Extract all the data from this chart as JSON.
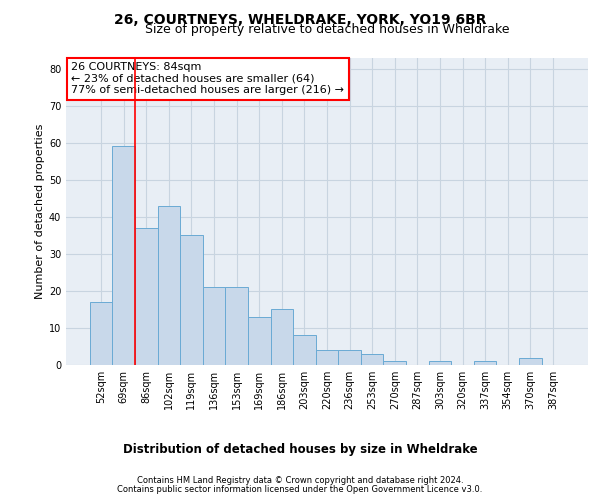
{
  "title": "26, COURTNEYS, WHELDRAKE, YORK, YO19 6BR",
  "subtitle": "Size of property relative to detached houses in Wheldrake",
  "xlabel_bottom": "Distribution of detached houses by size in Wheldrake",
  "ylabel": "Number of detached properties",
  "footer_line1": "Contains HM Land Registry data © Crown copyright and database right 2024.",
  "footer_line2": "Contains public sector information licensed under the Open Government Licence v3.0.",
  "categories": [
    "52sqm",
    "69sqm",
    "86sqm",
    "102sqm",
    "119sqm",
    "136sqm",
    "153sqm",
    "169sqm",
    "186sqm",
    "203sqm",
    "220sqm",
    "236sqm",
    "253sqm",
    "270sqm",
    "287sqm",
    "303sqm",
    "320sqm",
    "337sqm",
    "354sqm",
    "370sqm",
    "387sqm"
  ],
  "values": [
    17,
    59,
    37,
    43,
    35,
    21,
    21,
    13,
    15,
    8,
    4,
    4,
    3,
    1,
    0,
    1,
    0,
    1,
    0,
    2,
    0
  ],
  "bar_color": "#c8d8ea",
  "bar_edge_color": "#6aaad4",
  "bar_edge_width": 0.7,
  "red_line_index": 2,
  "annotation_text": "26 COURTNEYS: 84sqm\n← 23% of detached houses are smaller (64)\n77% of semi-detached houses are larger (216) →",
  "annotation_box_color": "white",
  "annotation_box_edge_color": "red",
  "ylim": [
    0,
    83
  ],
  "yticks": [
    0,
    10,
    20,
    30,
    40,
    50,
    60,
    70,
    80
  ],
  "background_color": "white",
  "plot_bg_color": "#e8eef5",
  "grid_color": "#c8d4e0",
  "title_fontsize": 10,
  "subtitle_fontsize": 9,
  "ylabel_fontsize": 8,
  "tick_fontsize": 7,
  "annotation_fontsize": 8,
  "footer_fontsize": 6,
  "xlabel_bottom_fontsize": 8.5
}
